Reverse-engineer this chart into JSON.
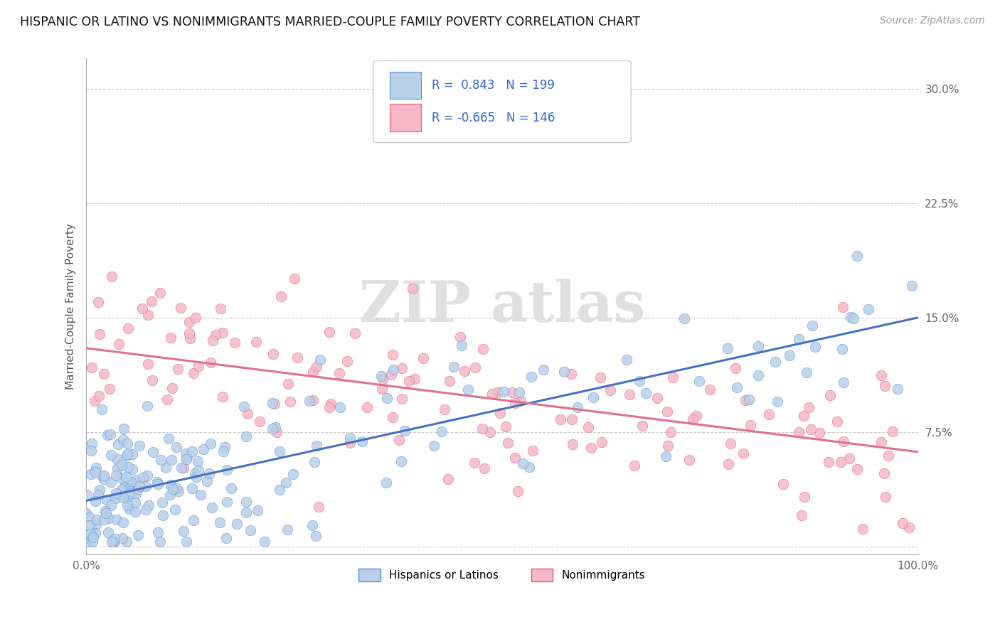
{
  "title": "HISPANIC OR LATINO VS NONIMMIGRANTS MARRIED-COUPLE FAMILY POVERTY CORRELATION CHART",
  "source_text": "Source: ZipAtlas.com",
  "ylabel": "Married-Couple Family Poverty",
  "xlim": [
    0,
    100
  ],
  "ylim": [
    -0.5,
    32
  ],
  "yticks": [
    0,
    7.5,
    15.0,
    22.5,
    30.0
  ],
  "ytick_labels": [
    "",
    "7.5%",
    "15.0%",
    "22.5%",
    "30.0%"
  ],
  "xtick_labels": [
    "0.0%",
    "100.0%"
  ],
  "blue_R": 0.843,
  "blue_N": 199,
  "pink_R": -0.665,
  "pink_N": 146,
  "blue_fill_color": "#b8d0e8",
  "pink_fill_color": "#f5b8c8",
  "blue_edge_color": "#5b8dd9",
  "pink_edge_color": "#e0607a",
  "blue_line_color": "#4472c4",
  "pink_line_color": "#e07090",
  "title_color": "#111111",
  "title_fontsize": 12.5,
  "source_fontsize": 10,
  "legend_label_blue": "Hispanics or Latinos",
  "legend_label_pink": "Nonimmigrants",
  "blue_trend_y0": 3.0,
  "blue_trend_y1": 15.0,
  "pink_trend_y0": 13.0,
  "pink_trend_y1": 6.2,
  "seed": 7
}
